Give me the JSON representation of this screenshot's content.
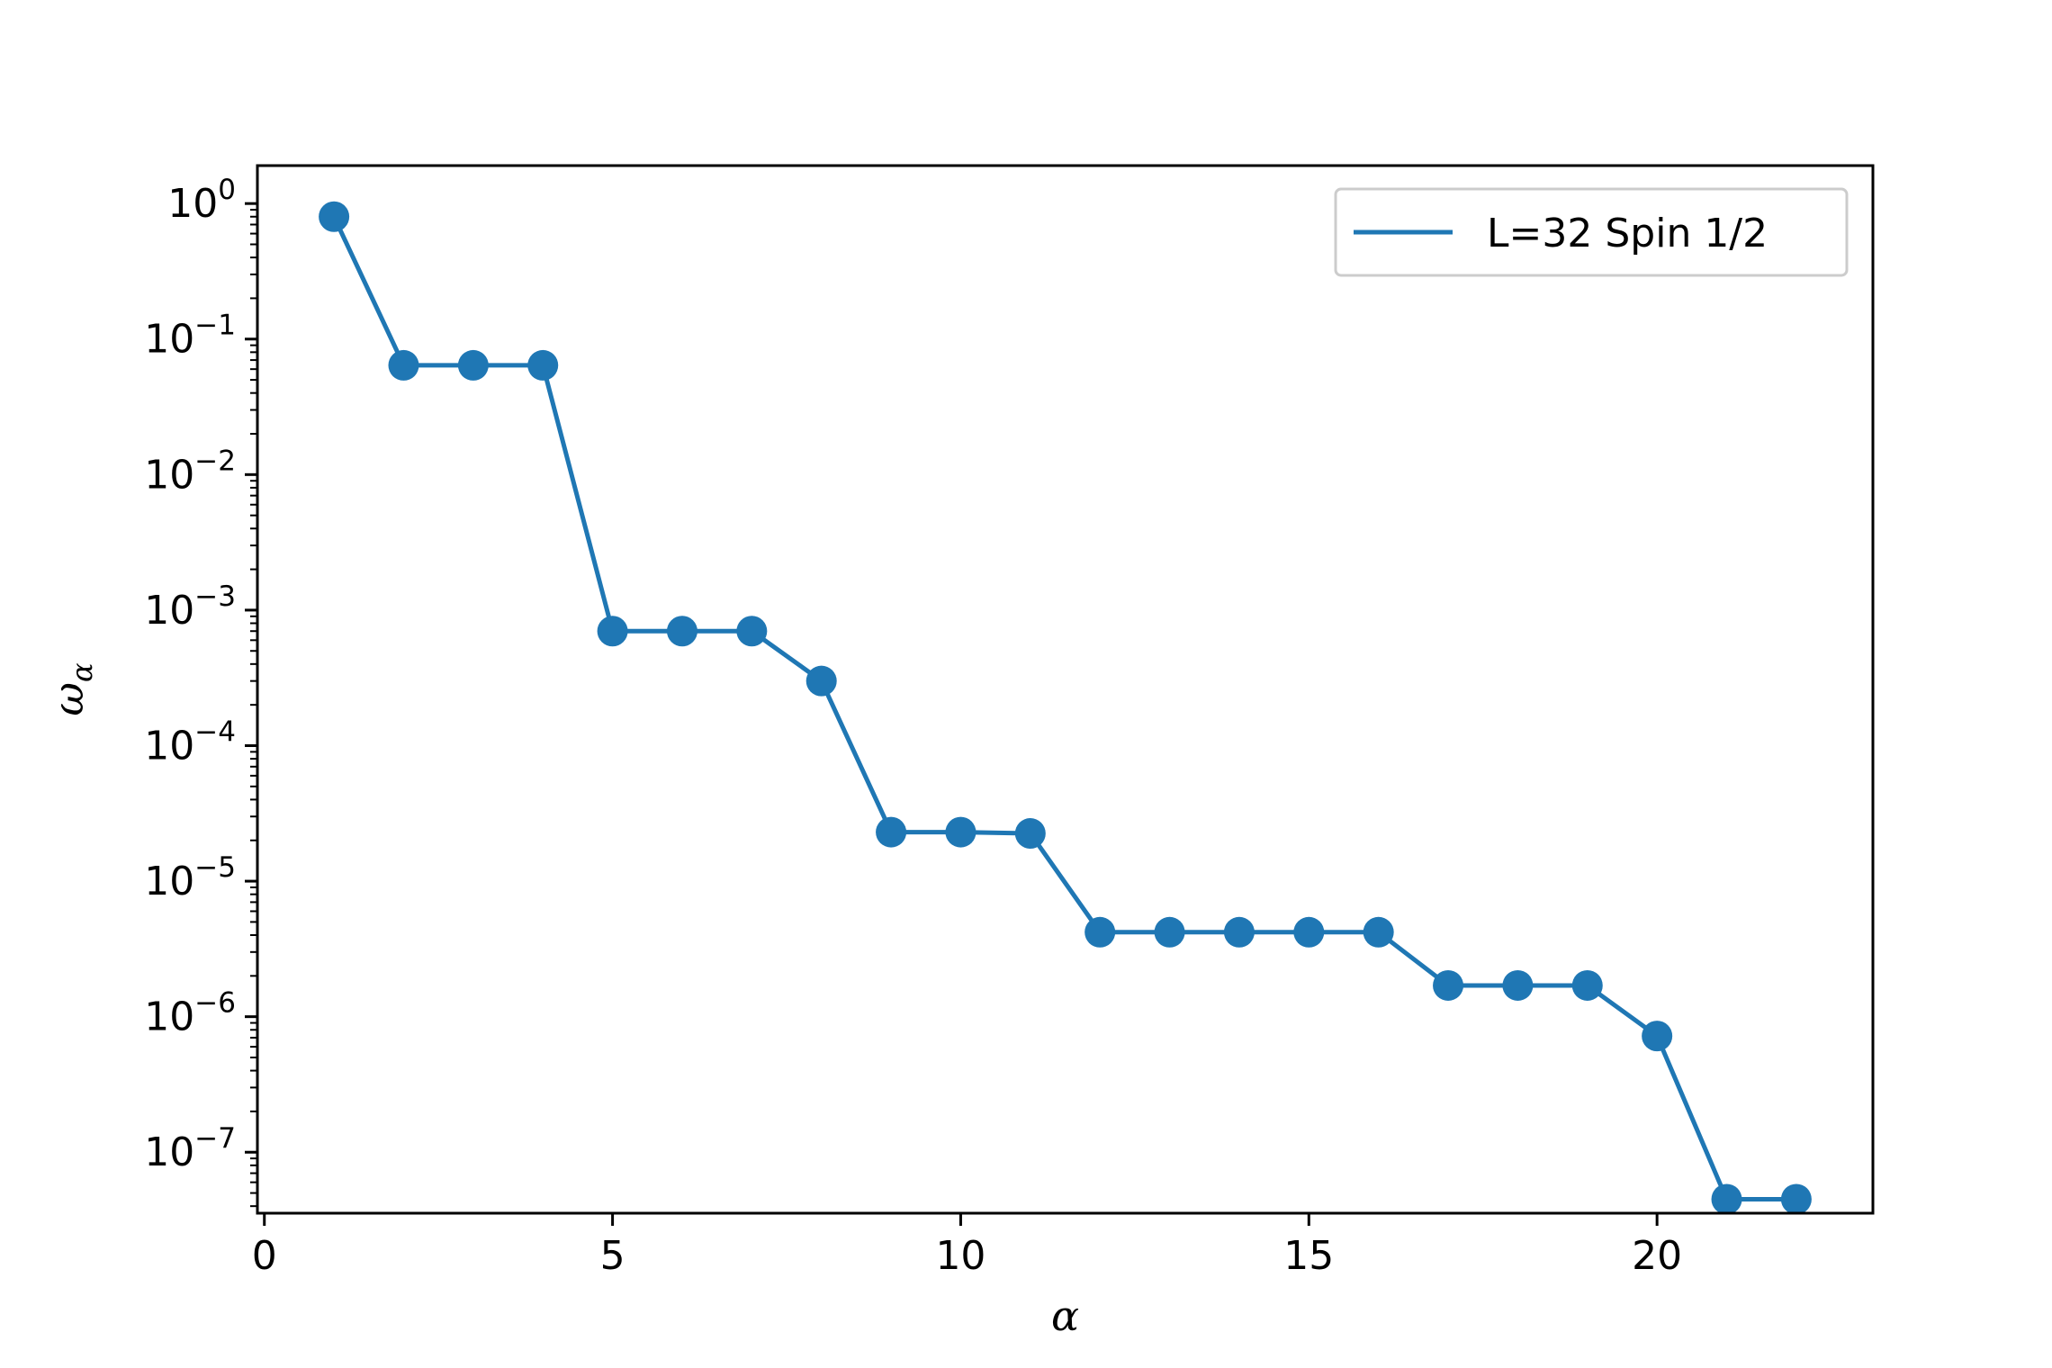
{
  "chart_data": {
    "type": "line",
    "title": "",
    "xlabel": "α",
    "ylabel": "ω",
    "ylabel_subscript": "α",
    "xlim": [
      -0.1,
      23.1
    ],
    "ylim_log10": [
      -7.45,
      0.28
    ],
    "yscale": "log",
    "grid": false,
    "legend_position": "top-right",
    "x_ticks": [
      0,
      5,
      10,
      15,
      20
    ],
    "y_ticks": [
      {
        "base": "10",
        "exp": "0",
        "value": 1
      },
      {
        "base": "10",
        "exp": "−1",
        "value": 0.1
      },
      {
        "base": "10",
        "exp": "−2",
        "value": 0.01
      },
      {
        "base": "10",
        "exp": "−3",
        "value": 0.001
      },
      {
        "base": "10",
        "exp": "−4",
        "value": 0.0001
      },
      {
        "base": "10",
        "exp": "−5",
        "value": 1e-05
      },
      {
        "base": "10",
        "exp": "−6",
        "value": 1e-06
      },
      {
        "base": "10",
        "exp": "−7",
        "value": 1e-07
      }
    ],
    "series": [
      {
        "name": "L=32 Spin 1/2",
        "color": "#1f77b4",
        "marker": "circle",
        "x": [
          1,
          2,
          3,
          4,
          5,
          6,
          7,
          8,
          9,
          10,
          11,
          12,
          13,
          14,
          15,
          16,
          17,
          18,
          19,
          20,
          21,
          22
        ],
        "y": [
          0.8,
          0.064,
          0.064,
          0.064,
          0.0007,
          0.0007,
          0.0007,
          0.0003,
          2.3e-05,
          2.3e-05,
          2.25e-05,
          4.2e-06,
          4.2e-06,
          4.2e-06,
          4.2e-06,
          4.2e-06,
          1.7e-06,
          1.7e-06,
          1.7e-06,
          7.2e-07,
          4.5e-08,
          4.5e-08
        ]
      }
    ]
  }
}
